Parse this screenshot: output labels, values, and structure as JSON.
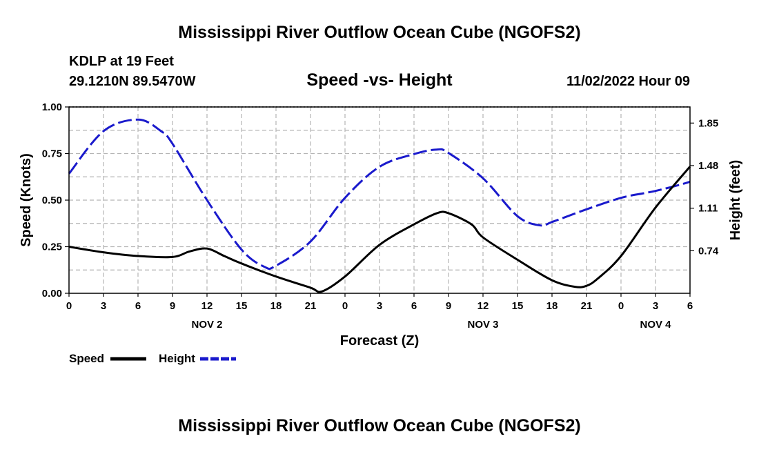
{
  "page": {
    "title": "Mississippi River Outflow Ocean Cube (NGOFS2)",
    "station": "KDLP at 19 Feet",
    "coords": "29.1210N  89.5470W",
    "subtitle": "Speed -vs- Height",
    "datetime": "11/02/2022 Hour 09",
    "bottom_title": "Mississippi River Outflow Ocean Cube (NGOFS2)"
  },
  "colors": {
    "speed": "#000000",
    "height": "#1a1acc",
    "grid": "#b4b4b4"
  },
  "chart_data": {
    "type": "line",
    "title": "Speed -vs- Height",
    "xlabel": "Forecast (Z)",
    "ylabel": "Speed (Knots)",
    "y2label": "Height (feet)",
    "x_range_hours": [
      0,
      54
    ],
    "x_ticks": [
      "0",
      "3",
      "6",
      "9",
      "12",
      "15",
      "18",
      "21",
      "0",
      "3",
      "6",
      "9",
      "12",
      "15",
      "18",
      "21",
      "0",
      "3",
      "6"
    ],
    "day_labels": [
      {
        "hour": 12,
        "label": "NOV 2"
      },
      {
        "hour": 36,
        "label": "NOV 3"
      },
      {
        "hour": 51,
        "label": "NOV 4"
      }
    ],
    "ylim": [
      0,
      1.0
    ],
    "y_ticks": [
      "0.00",
      "0.25",
      "0.50",
      "0.75",
      "1.00"
    ],
    "y2lim": [
      0.37,
      1.99
    ],
    "y2_ticks": [
      "0.74",
      "1.11",
      "1.48",
      "1.85"
    ],
    "grid": true,
    "legend_position": "bottom-left",
    "series": [
      {
        "name": "Speed",
        "axis": "left",
        "x": [
          0,
          3,
          6,
          9,
          10.5,
          12,
          13.5,
          15,
          18,
          21,
          22,
          24,
          27,
          30,
          32,
          33,
          35,
          36,
          39,
          42,
          44,
          45,
          46,
          48,
          51,
          54
        ],
        "values": [
          0.25,
          0.22,
          0.2,
          0.195,
          0.225,
          0.24,
          0.2,
          0.16,
          0.09,
          0.03,
          0.01,
          0.09,
          0.26,
          0.37,
          0.43,
          0.43,
          0.37,
          0.3,
          0.18,
          0.07,
          0.035,
          0.04,
          0.08,
          0.2,
          0.46,
          0.68
        ]
      },
      {
        "name": "Height",
        "axis": "right",
        "x": [
          0,
          3,
          6,
          8,
          9,
          12,
          15,
          17,
          18,
          21,
          24,
          27,
          30,
          32,
          33,
          36,
          39,
          41,
          42,
          45,
          48,
          50,
          51,
          53,
          54
        ],
        "values": [
          1.41,
          1.78,
          1.88,
          1.78,
          1.67,
          1.18,
          0.75,
          0.6,
          0.61,
          0.82,
          1.2,
          1.47,
          1.58,
          1.62,
          1.59,
          1.37,
          1.04,
          0.96,
          0.99,
          1.1,
          1.2,
          1.24,
          1.26,
          1.31,
          1.34
        ]
      }
    ]
  }
}
